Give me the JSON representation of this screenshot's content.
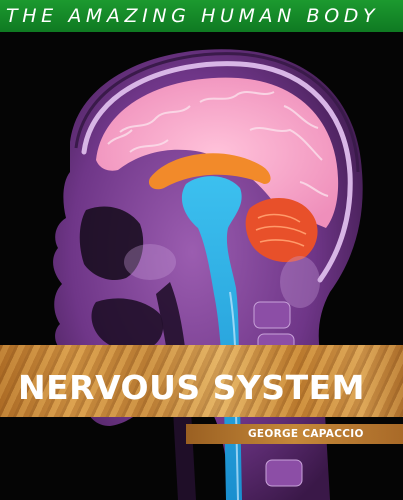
{
  "cover": {
    "series_title": "THE AMAZING HUMAN BODY",
    "book_title": "NERVOUS SYSTEM",
    "author": "GEORGE CAPACCIO"
  },
  "colors": {
    "series_band": "#1c9a2f",
    "title_band": "#c88a3a",
    "background": "#050505",
    "cerebrum": "#f7a3c6",
    "brainstem": "#1fa6e0",
    "cerebellum": "#e8502a",
    "tissue": "#7a3f92"
  }
}
